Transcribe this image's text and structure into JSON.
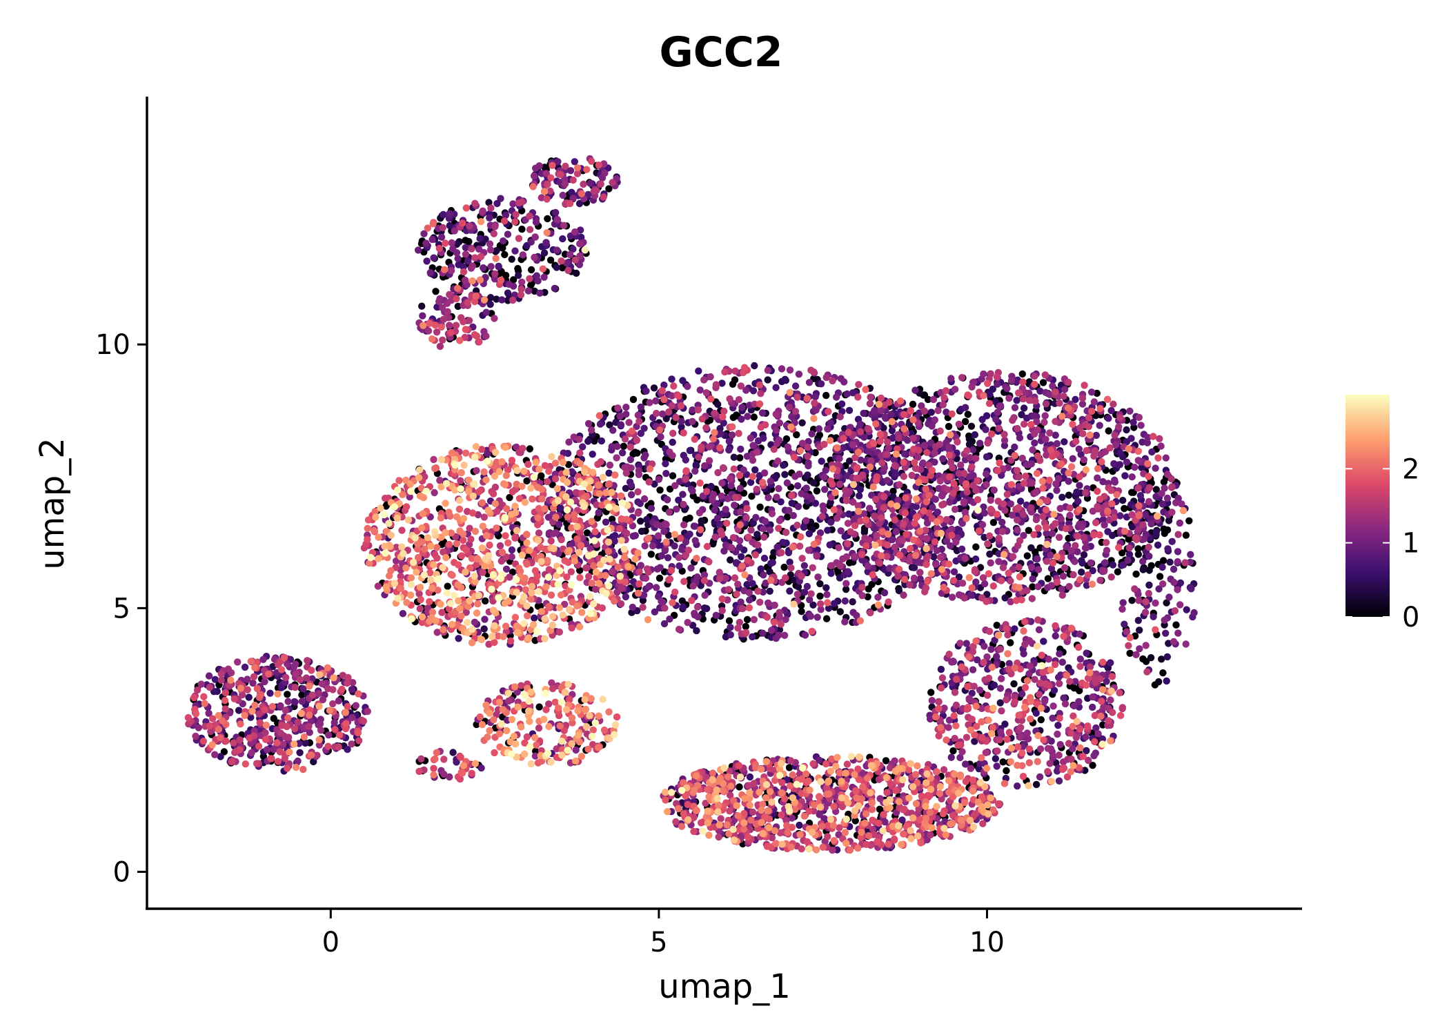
{
  "chart_data": {
    "type": "scatter",
    "title": "GCC2",
    "xlabel": "umap_1",
    "ylabel": "umap_2",
    "xlim": [
      -2.8,
      14.8
    ],
    "ylim": [
      -0.7,
      14.7
    ],
    "x_ticks": [
      0,
      5,
      10
    ],
    "x_tick_labels": [
      "0",
      "5",
      "10"
    ],
    "y_ticks": [
      0,
      5,
      10
    ],
    "y_tick_labels": [
      "0",
      "5",
      "10"
    ],
    "grid": false,
    "legend": "right",
    "colorbar": {
      "label": "",
      "min": 0,
      "max": 3,
      "ticks": [
        0,
        1,
        2
      ],
      "tick_labels": [
        "0",
        "1",
        "2"
      ],
      "colormap": [
        "#000004",
        "#3b0f70",
        "#8c2981",
        "#de4968",
        "#fe9f6d",
        "#fcfdbf"
      ]
    },
    "regions": [
      {
        "name": "left-cluster",
        "cx": -0.8,
        "cy": 3.0,
        "rx": 1.4,
        "ry": 1.1,
        "mean": 1.2,
        "n": 520
      },
      {
        "name": "small-island",
        "cx": 1.8,
        "cy": 2.0,
        "rx": 0.5,
        "ry": 0.3,
        "mean": 1.5,
        "n": 40
      },
      {
        "name": "top-arm",
        "cx": 2.6,
        "cy": 11.8,
        "rx": 1.3,
        "ry": 1.0,
        "mean": 0.8,
        "n": 320
      },
      {
        "name": "top-arm-tip",
        "cx": 3.7,
        "cy": 13.1,
        "rx": 0.7,
        "ry": 0.45,
        "mean": 0.9,
        "n": 120
      },
      {
        "name": "top-arm-neck",
        "cx": 1.9,
        "cy": 10.5,
        "rx": 0.6,
        "ry": 0.6,
        "mean": 1.3,
        "n": 90
      },
      {
        "name": "bright-left-lobe",
        "cx": 2.6,
        "cy": 6.2,
        "rx": 2.1,
        "ry": 1.9,
        "mean": 1.9,
        "n": 1100
      },
      {
        "name": "center-main",
        "cx": 6.5,
        "cy": 7.0,
        "rx": 3.2,
        "ry": 2.6,
        "mean": 0.9,
        "n": 1700
      },
      {
        "name": "right-main",
        "cx": 10.2,
        "cy": 7.3,
        "rx": 2.7,
        "ry": 2.2,
        "mean": 1.0,
        "n": 1500
      },
      {
        "name": "right-edge",
        "cx": 12.6,
        "cy": 5.5,
        "rx": 0.6,
        "ry": 2.0,
        "mean": 0.7,
        "n": 150
      },
      {
        "name": "lower-bridge",
        "cx": 3.3,
        "cy": 2.8,
        "rx": 1.1,
        "ry": 0.8,
        "mean": 1.9,
        "n": 230
      },
      {
        "name": "bottom-band",
        "cx": 7.6,
        "cy": 1.3,
        "rx": 2.6,
        "ry": 0.9,
        "mean": 1.6,
        "n": 1100
      },
      {
        "name": "lower-right",
        "cx": 10.6,
        "cy": 3.2,
        "rx": 1.5,
        "ry": 1.6,
        "mean": 1.2,
        "n": 560
      }
    ]
  }
}
